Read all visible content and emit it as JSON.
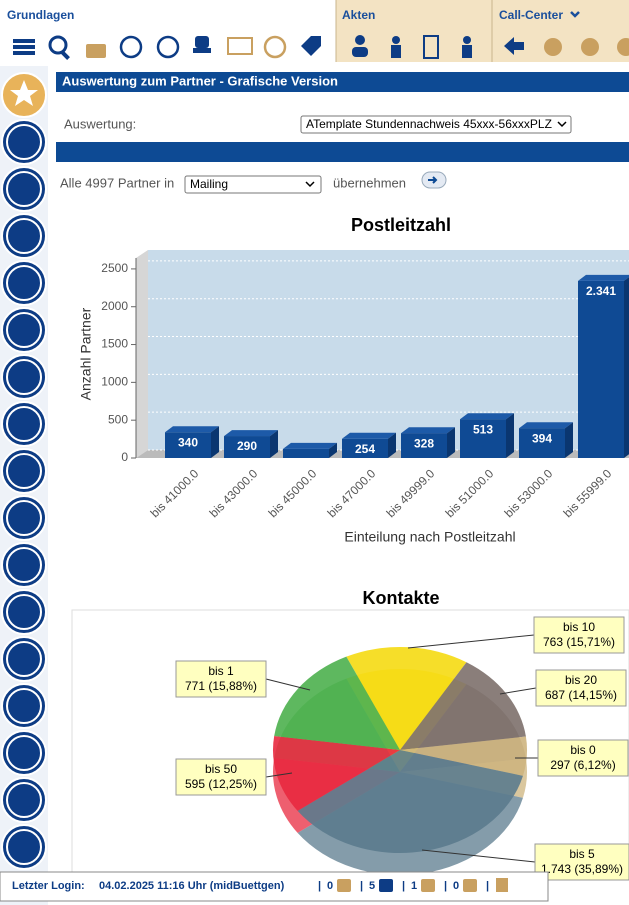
{
  "toolbar": {
    "sections": [
      "Grundlagen",
      "Akten",
      "Call-Center"
    ]
  },
  "header": {
    "title": "Auswertung zum Partner - Grafische Version"
  },
  "form": {
    "auswertung_label": "Auswertung:",
    "auswertung_value": "ATemplate Stundennachweis 45xxx-56xxxPLZ",
    "partner_text": "Alle 4997 Partner in",
    "partner_select": "Mailing",
    "apply": "übernehmen"
  },
  "chart_data": [
    {
      "type": "bar",
      "title": "Postleitzahl",
      "x_label": "Einteilung nach Postleitzahl",
      "y_label": "Anzahl Partner",
      "categories": [
        "bis 41000.0",
        "bis 43000.0",
        "bis 45000.0",
        "bis 47000.0",
        "bis 49999.0",
        "bis 51000.0",
        "bis 53000.0",
        "bis 55999.0"
      ],
      "values": [
        340,
        290,
        120,
        254,
        328,
        513,
        394,
        2341
      ],
      "value_labels": [
        "340",
        "290",
        null,
        "254",
        "328",
        "513",
        "394",
        "2.341"
      ],
      "color": "#0f4a94",
      "ylim": [
        0,
        2750
      ],
      "yticks": [
        0,
        500,
        1000,
        1500,
        2000,
        2500
      ],
      "grid": true
    },
    {
      "type": "pie",
      "title": "Kontakte",
      "series": [
        {
          "name": "bis 10",
          "color": "#f5da12",
          "values": [
            763
          ],
          "value_labels": [
            "763 (15,71%)"
          ]
        },
        {
          "name": "bis 20",
          "color": "#7d706b",
          "values": [
            687
          ],
          "value_labels": [
            "687 (14,15%)"
          ]
        },
        {
          "name": "bis 0",
          "color": "#cdb47e",
          "values": [
            297
          ],
          "value_labels": [
            "297 (6,12%)"
          ]
        },
        {
          "name": "bis 5",
          "color": "#5b7b8d",
          "values": [
            1743
          ],
          "value_labels": [
            "1.743 (35,89%)"
          ]
        },
        {
          "name": "bis 50",
          "color": "#e8293f",
          "values": [
            595
          ],
          "value_labels": [
            "595 (12,25%)"
          ]
        },
        {
          "name": "bis 1",
          "color": "#4cb04e",
          "values": [
            771
          ],
          "value_labels": [
            "771 (15,88%)"
          ]
        }
      ]
    }
  ],
  "footer": {
    "login_label": "Letzter Login:",
    "login_value": "04.02.2025 11:16 Uhr (midBuettgen)",
    "counts": [
      0,
      5,
      1,
      0
    ]
  }
}
